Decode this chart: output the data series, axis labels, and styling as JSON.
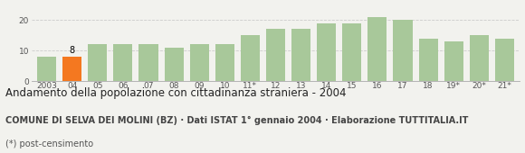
{
  "categories": [
    "2003",
    "04",
    "05",
    "06",
    "07",
    "08",
    "09",
    "10",
    "11*",
    "12",
    "13",
    "14",
    "15",
    "16",
    "17",
    "18",
    "19*",
    "20*",
    "21*"
  ],
  "values": [
    8,
    8,
    12,
    12,
    12,
    11,
    12,
    12,
    15,
    17,
    17,
    19,
    19,
    21,
    20,
    14,
    13,
    15,
    14
  ],
  "highlighted_index": 1,
  "bar_color_normal": "#a8c89a",
  "bar_color_highlight": "#f47820",
  "highlight_label": "8",
  "title": "Andamento della popolazione con cittadinanza straniera - 2004",
  "subtitle": "COMUNE DI SELVA DEI MOLINI (BZ) · Dati ISTAT 1° gennaio 2004 · Elaborazione TUTTITALIA.IT",
  "footnote": "(*) post-censimento",
  "ylim": [
    0,
    25
  ],
  "yticks": [
    0,
    10,
    20
  ],
  "grid_color": "#cccccc",
  "background_color": "#f2f2ee",
  "title_fontsize": 8.5,
  "subtitle_fontsize": 7.0,
  "footnote_fontsize": 7.0,
  "tick_fontsize": 6.5,
  "label_fontsize": 7.0
}
